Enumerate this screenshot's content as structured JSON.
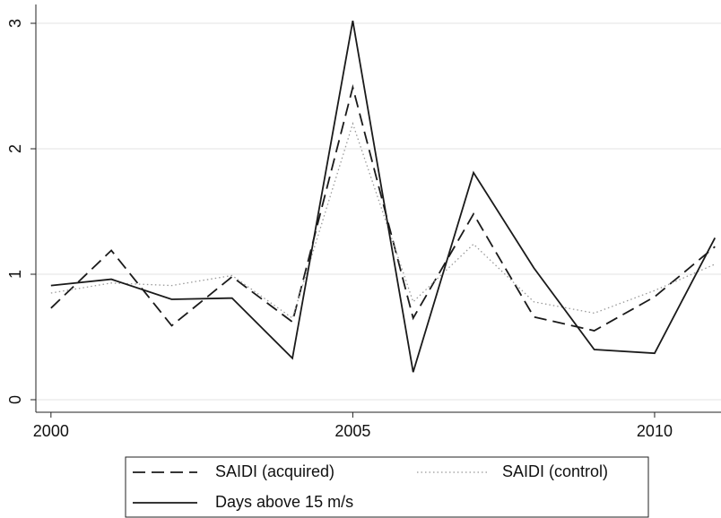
{
  "chart_data": {
    "type": "line",
    "x": [
      2000,
      2001,
      2002,
      2003,
      2004,
      2005,
      2006,
      2007,
      2008,
      2009,
      2010,
      2011
    ],
    "series": [
      {
        "name": "SAIDI (acquired)",
        "color": "#1a1a1a",
        "style": "dashed",
        "values": [
          0.73,
          1.19,
          0.59,
          0.98,
          0.62,
          2.49,
          0.65,
          1.48,
          0.66,
          0.55,
          0.82,
          1.22
        ]
      },
      {
        "name": "SAIDI (control)",
        "color": "#999999",
        "style": "dotted",
        "values": [
          0.85,
          0.93,
          0.91,
          0.99,
          0.65,
          2.2,
          0.78,
          1.24,
          0.78,
          0.69,
          0.87,
          1.08
        ]
      },
      {
        "name": "Days above 15 m/s",
        "color": "#1a1a1a",
        "style": "solid",
        "values": [
          0.91,
          0.96,
          0.8,
          0.81,
          0.33,
          3.02,
          0.22,
          1.81,
          1.05,
          0.4,
          0.37,
          1.29
        ]
      }
    ],
    "xlim": [
      1999.75,
      2011.1
    ],
    "xticks": [
      2000,
      2005,
      2010
    ],
    "ylim": [
      -0.1,
      3.15
    ],
    "yticks": [
      0,
      1,
      2,
      3
    ],
    "grid": true,
    "legend": "bottom"
  }
}
